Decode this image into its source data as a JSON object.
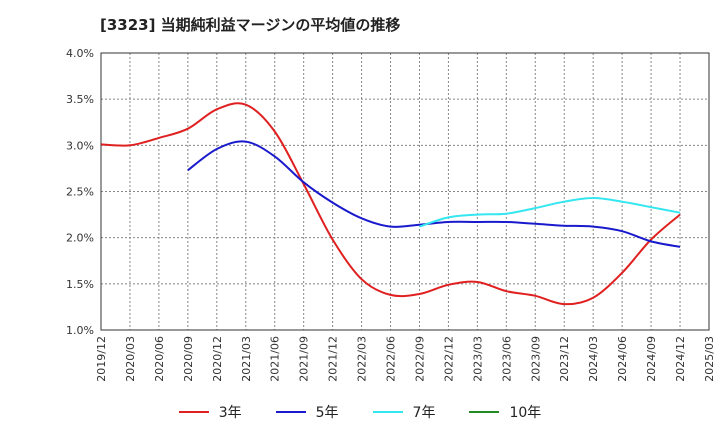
{
  "chart_data": {
    "type": "line",
    "title": "[3323]  当期純利益マージンの平均値の推移",
    "xlabel": "",
    "ylabel": "",
    "ylim": [
      1.0,
      4.0
    ],
    "grid": true,
    "legend_position": "bottom",
    "y_ticks": [
      "4.0%",
      "3.5%",
      "3.0%",
      "2.5%",
      "2.0%",
      "1.5%",
      "1.0%"
    ],
    "x_ticks": [
      "2019/12",
      "2020/03",
      "2020/06",
      "2020/09",
      "2020/12",
      "2021/03",
      "2021/06",
      "2021/09",
      "2021/12",
      "2022/03",
      "2022/06",
      "2022/09",
      "2022/12",
      "2023/03",
      "2023/06",
      "2023/09",
      "2023/12",
      "2024/03",
      "2024/06",
      "2024/09",
      "2024/12",
      "2025/03"
    ],
    "x": [
      "2019/12",
      "2020/03",
      "2020/06",
      "2020/09",
      "2020/12",
      "2021/03",
      "2021/06",
      "2021/09",
      "2021/12",
      "2022/03",
      "2022/06",
      "2022/09",
      "2022/12",
      "2023/03",
      "2023/06",
      "2023/09",
      "2023/12",
      "2024/03",
      "2024/06",
      "2024/09",
      "2024/12"
    ],
    "series": [
      {
        "name": "3年",
        "color": "#e02020",
        "values": [
          3.01,
          3.0,
          3.08,
          3.18,
          3.39,
          3.44,
          3.15,
          2.58,
          1.98,
          1.55,
          1.38,
          1.39,
          1.49,
          1.52,
          1.42,
          1.37,
          1.28,
          1.35,
          1.62,
          1.98,
          2.25
        ]
      },
      {
        "name": "5年",
        "color": "#1a1acd",
        "values": [
          null,
          null,
          null,
          2.73,
          2.96,
          3.04,
          2.88,
          2.6,
          2.38,
          2.21,
          2.12,
          2.14,
          2.17,
          2.17,
          2.17,
          2.15,
          2.13,
          2.12,
          2.07,
          1.96,
          1.9
        ]
      },
      {
        "name": "7年",
        "color": "#33e6f0",
        "values": [
          null,
          null,
          null,
          null,
          null,
          null,
          null,
          null,
          null,
          null,
          null,
          2.12,
          2.22,
          2.25,
          2.26,
          2.32,
          2.39,
          2.43,
          2.39,
          2.33,
          2.27
        ]
      },
      {
        "name": "10年",
        "color": "#228b22",
        "values": [
          null,
          null,
          null,
          null,
          null,
          null,
          null,
          null,
          null,
          null,
          null,
          null,
          null,
          null,
          null,
          null,
          null,
          null,
          null,
          null,
          null
        ]
      }
    ]
  }
}
